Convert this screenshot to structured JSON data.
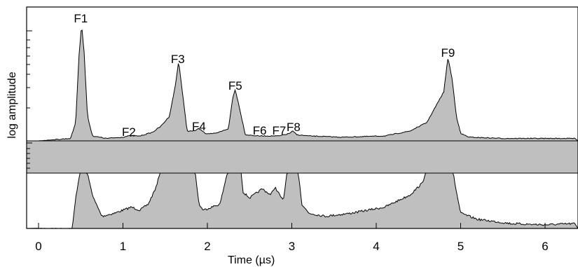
{
  "chart_data": {
    "type": "area",
    "xlabel": "Time (µs)",
    "ylabel": "log amplitude",
    "xlim": [
      0,
      6.35
    ],
    "xticks": [
      "0",
      "1",
      "2",
      "3",
      "4",
      "5",
      "6"
    ],
    "x_tick_values": [
      0,
      1,
      2,
      3,
      4,
      5,
      6
    ],
    "grid": false,
    "legend": "none",
    "fill_color": "#bfbfbf",
    "line_color": "#000000",
    "peaks": [
      {
        "label": "F1",
        "x": 0.5
      },
      {
        "label": "F2",
        "x": 1.07
      },
      {
        "label": "F3",
        "x": 1.65
      },
      {
        "label": "F4",
        "x": 1.9
      },
      {
        "label": "F5",
        "x": 2.33
      },
      {
        "label": "F6",
        "x": 2.62
      },
      {
        "label": "F7",
        "x": 2.85
      },
      {
        "label": "F8",
        "x": 3.02
      },
      {
        "label": "F9",
        "x": 4.85
      }
    ],
    "series": [
      {
        "panel": "upper",
        "x": [
          0.0,
          0.38,
          0.44,
          0.48,
          0.51,
          0.54,
          0.58,
          0.64,
          0.8,
          1.0,
          1.07,
          1.2,
          1.35,
          1.45,
          1.55,
          1.62,
          1.66,
          1.7,
          1.76,
          1.84,
          1.9,
          1.98,
          2.1,
          2.25,
          2.3,
          2.33,
          2.37,
          2.45,
          2.6,
          2.85,
          2.97,
          3.01,
          3.06,
          3.2,
          3.6,
          4.1,
          4.4,
          4.6,
          4.72,
          4.8,
          4.85,
          4.9,
          4.95,
          5.0,
          5.1,
          5.5,
          6.35
        ],
        "values": [
          0.0,
          0.02,
          0.15,
          0.7,
          0.95,
          0.72,
          0.2,
          0.04,
          0.02,
          0.03,
          0.04,
          0.04,
          0.07,
          0.12,
          0.2,
          0.45,
          0.65,
          0.42,
          0.08,
          0.08,
          0.1,
          0.06,
          0.06,
          0.1,
          0.35,
          0.42,
          0.3,
          0.05,
          0.04,
          0.04,
          0.06,
          0.08,
          0.05,
          0.04,
          0.03,
          0.04,
          0.08,
          0.15,
          0.3,
          0.4,
          0.68,
          0.5,
          0.2,
          0.06,
          0.03,
          0.02,
          0.02
        ]
      },
      {
        "panel": "lower",
        "x": [
          0.0,
          0.4,
          0.44,
          0.5,
          0.56,
          0.65,
          0.75,
          0.9,
          1.0,
          1.1,
          1.2,
          1.3,
          1.4,
          1.45,
          1.6,
          1.85,
          1.9,
          1.95,
          2.05,
          2.15,
          2.2,
          2.25,
          2.4,
          2.42,
          2.5,
          2.65,
          2.75,
          2.8,
          2.9,
          2.95,
          3.07,
          3.12,
          3.2,
          3.4,
          3.7,
          4.1,
          4.4,
          4.55,
          4.6,
          4.9,
          4.95,
          5.0,
          5.2,
          5.6,
          6.0,
          6.35
        ],
        "values": [
          0.0,
          0.0,
          0.5,
          1.0,
          1.0,
          0.5,
          0.2,
          0.25,
          0.3,
          0.35,
          0.3,
          0.4,
          0.7,
          1.0,
          1.0,
          1.0,
          0.4,
          0.3,
          0.35,
          0.4,
          0.7,
          1.0,
          1.0,
          0.6,
          0.5,
          0.65,
          0.55,
          0.68,
          0.45,
          1.0,
          1.0,
          0.4,
          0.25,
          0.2,
          0.25,
          0.35,
          0.55,
          0.75,
          1.0,
          1.0,
          0.6,
          0.25,
          0.15,
          0.08,
          0.06,
          0.08
        ]
      }
    ]
  }
}
